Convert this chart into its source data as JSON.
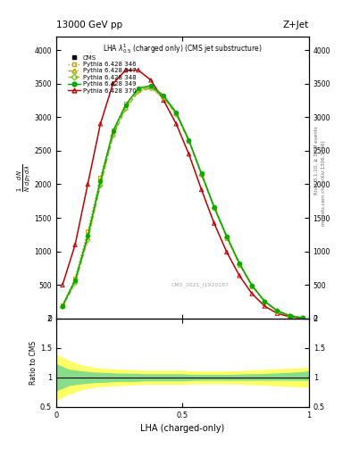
{
  "title_top": "13000 GeV pp",
  "title_right": "Z+Jet",
  "plot_title": "LHA $\\lambda^{1}_{0.5}$ (charged only) (CMS jet substructure)",
  "xlabel": "LHA (charged-only)",
  "ylabel_ratio": "Ratio to CMS",
  "right_label": "Rivet 3.1.10, ≥ 3.3M events",
  "right_label2": "mcplots.cern.ch [arXiv:1306.3436]",
  "watermark": "CMS_2021_I1920187",
  "py346_x": [
    0.025,
    0.075,
    0.125,
    0.175,
    0.225,
    0.275,
    0.325,
    0.375,
    0.425,
    0.475,
    0.525,
    0.575,
    0.625,
    0.675,
    0.725,
    0.775,
    0.825,
    0.875,
    0.925,
    0.975
  ],
  "py346_y": [
    200,
    600,
    1300,
    2100,
    2800,
    3200,
    3400,
    3450,
    3300,
    3050,
    2650,
    2150,
    1650,
    1200,
    800,
    480,
    250,
    110,
    40,
    10
  ],
  "py347_x": [
    0.025,
    0.075,
    0.125,
    0.175,
    0.225,
    0.275,
    0.325,
    0.375,
    0.425,
    0.475,
    0.525,
    0.575,
    0.625,
    0.675,
    0.725,
    0.775,
    0.825,
    0.875,
    0.925,
    0.975
  ],
  "py347_y": [
    180,
    550,
    1200,
    2000,
    2750,
    3150,
    3400,
    3450,
    3300,
    3050,
    2650,
    2150,
    1660,
    1220,
    820,
    490,
    255,
    115,
    42,
    11
  ],
  "py348_x": [
    0.025,
    0.075,
    0.125,
    0.175,
    0.225,
    0.275,
    0.325,
    0.375,
    0.425,
    0.475,
    0.525,
    0.575,
    0.625,
    0.675,
    0.725,
    0.775,
    0.825,
    0.875,
    0.925,
    0.975
  ],
  "py348_y": [
    175,
    530,
    1170,
    1980,
    2720,
    3120,
    3380,
    3430,
    3290,
    3040,
    2640,
    2140,
    1650,
    1210,
    810,
    485,
    252,
    113,
    41,
    11
  ],
  "py349_x": [
    0.025,
    0.075,
    0.125,
    0.175,
    0.225,
    0.275,
    0.325,
    0.375,
    0.425,
    0.475,
    0.525,
    0.575,
    0.625,
    0.675,
    0.725,
    0.775,
    0.825,
    0.875,
    0.925,
    0.975
  ],
  "py349_y": [
    190,
    570,
    1230,
    2050,
    2790,
    3180,
    3430,
    3470,
    3320,
    3070,
    2660,
    2160,
    1665,
    1225,
    825,
    492,
    258,
    116,
    43,
    11
  ],
  "py370_x": [
    0.025,
    0.075,
    0.125,
    0.175,
    0.225,
    0.275,
    0.325,
    0.375,
    0.425,
    0.475,
    0.525,
    0.575,
    0.625,
    0.675,
    0.725,
    0.775,
    0.825,
    0.875,
    0.925,
    0.975
  ],
  "py370_y": [
    500,
    1100,
    2000,
    2900,
    3500,
    3700,
    3700,
    3550,
    3250,
    2900,
    2450,
    1920,
    1420,
    990,
    640,
    370,
    185,
    78,
    26,
    6
  ],
  "color_cms": "#000000",
  "color_346": "#c8a000",
  "color_347": "#aaaa00",
  "color_348": "#88bb20",
  "color_349": "#00aa00",
  "color_370": "#bb0000",
  "ylim_main": [
    0,
    4200
  ],
  "ylim_ratio": [
    0.5,
    2.0
  ],
  "xlim": [
    0.0,
    1.0
  ],
  "yticks_main": [
    0,
    500,
    1000,
    1500,
    2000,
    2500,
    3000,
    3500,
    4000
  ],
  "ytick_labels_main": [
    "0",
    "500",
    "1000",
    "1500",
    "2000",
    "2500",
    "3000",
    "3500",
    "4000"
  ],
  "ratio_green_x": [
    0.0,
    0.05,
    0.1,
    0.15,
    0.2,
    0.25,
    0.3,
    0.35,
    0.4,
    0.45,
    0.5,
    0.55,
    0.6,
    0.65,
    0.7,
    0.75,
    0.8,
    0.85,
    0.9,
    0.95,
    1.0
  ],
  "ratio_green_lo": [
    0.78,
    0.87,
    0.9,
    0.92,
    0.93,
    0.94,
    0.94,
    0.95,
    0.95,
    0.95,
    0.95,
    0.96,
    0.96,
    0.96,
    0.96,
    0.96,
    0.96,
    0.96,
    0.96,
    0.96,
    0.96
  ],
  "ratio_green_hi": [
    1.22,
    1.13,
    1.1,
    1.08,
    1.07,
    1.06,
    1.06,
    1.05,
    1.05,
    1.05,
    1.05,
    1.04,
    1.04,
    1.04,
    1.04,
    1.05,
    1.05,
    1.06,
    1.07,
    1.08,
    1.1
  ],
  "ratio_yellow_lo": [
    0.62,
    0.72,
    0.8,
    0.84,
    0.86,
    0.87,
    0.88,
    0.89,
    0.89,
    0.89,
    0.89,
    0.9,
    0.9,
    0.9,
    0.9,
    0.89,
    0.88,
    0.87,
    0.86,
    0.85,
    0.84
  ],
  "ratio_yellow_hi": [
    1.38,
    1.28,
    1.2,
    1.16,
    1.14,
    1.13,
    1.12,
    1.11,
    1.11,
    1.11,
    1.11,
    1.1,
    1.1,
    1.1,
    1.1,
    1.11,
    1.12,
    1.13,
    1.14,
    1.15,
    1.16
  ]
}
